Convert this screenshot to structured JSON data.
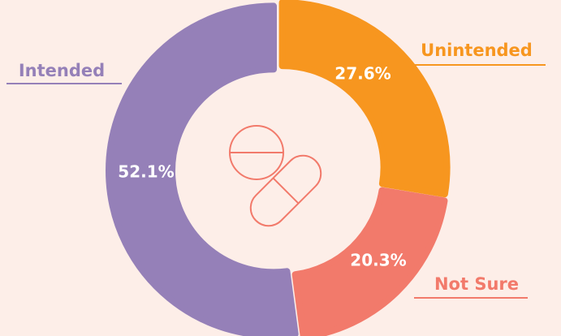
{
  "chart_data": {
    "type": "donut",
    "categories": [
      "Unintended",
      "Not Sure",
      "Intended"
    ],
    "values": [
      27.6,
      20.3,
      52.1
    ],
    "value_labels": [
      "27.6%",
      "20.3%",
      "52.1%"
    ],
    "colors": [
      "#f7961f",
      "#f27a6b",
      "#9580b8"
    ]
  }
}
